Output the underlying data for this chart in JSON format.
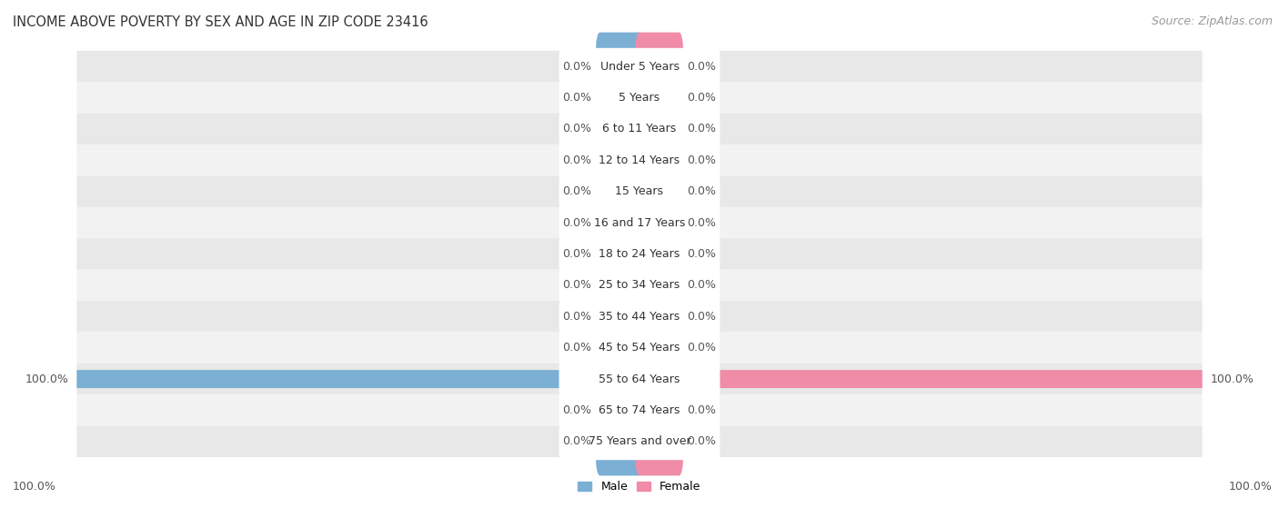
{
  "title": "INCOME ABOVE POVERTY BY SEX AND AGE IN ZIP CODE 23416",
  "source": "Source: ZipAtlas.com",
  "categories": [
    "Under 5 Years",
    "5 Years",
    "6 to 11 Years",
    "12 to 14 Years",
    "15 Years",
    "16 and 17 Years",
    "18 to 24 Years",
    "25 to 34 Years",
    "35 to 44 Years",
    "45 to 54 Years",
    "55 to 64 Years",
    "65 to 74 Years",
    "75 Years and over"
  ],
  "male_values": [
    0.0,
    0.0,
    0.0,
    0.0,
    0.0,
    0.0,
    0.0,
    0.0,
    0.0,
    0.0,
    100.0,
    0.0,
    0.0
  ],
  "female_values": [
    0.0,
    0.0,
    0.0,
    0.0,
    0.0,
    0.0,
    0.0,
    0.0,
    0.0,
    0.0,
    100.0,
    0.0,
    0.0
  ],
  "male_color": "#7bafd4",
  "female_color": "#f08ca8",
  "male_label": "Male",
  "female_label": "Female",
  "bg_color": "#ffffff",
  "row_colors": [
    "#e8e8e8",
    "#f2f2f2"
  ],
  "title_fontsize": 10.5,
  "label_fontsize": 9,
  "source_fontsize": 9,
  "max_value": 100.0,
  "stub_size": 7.0
}
